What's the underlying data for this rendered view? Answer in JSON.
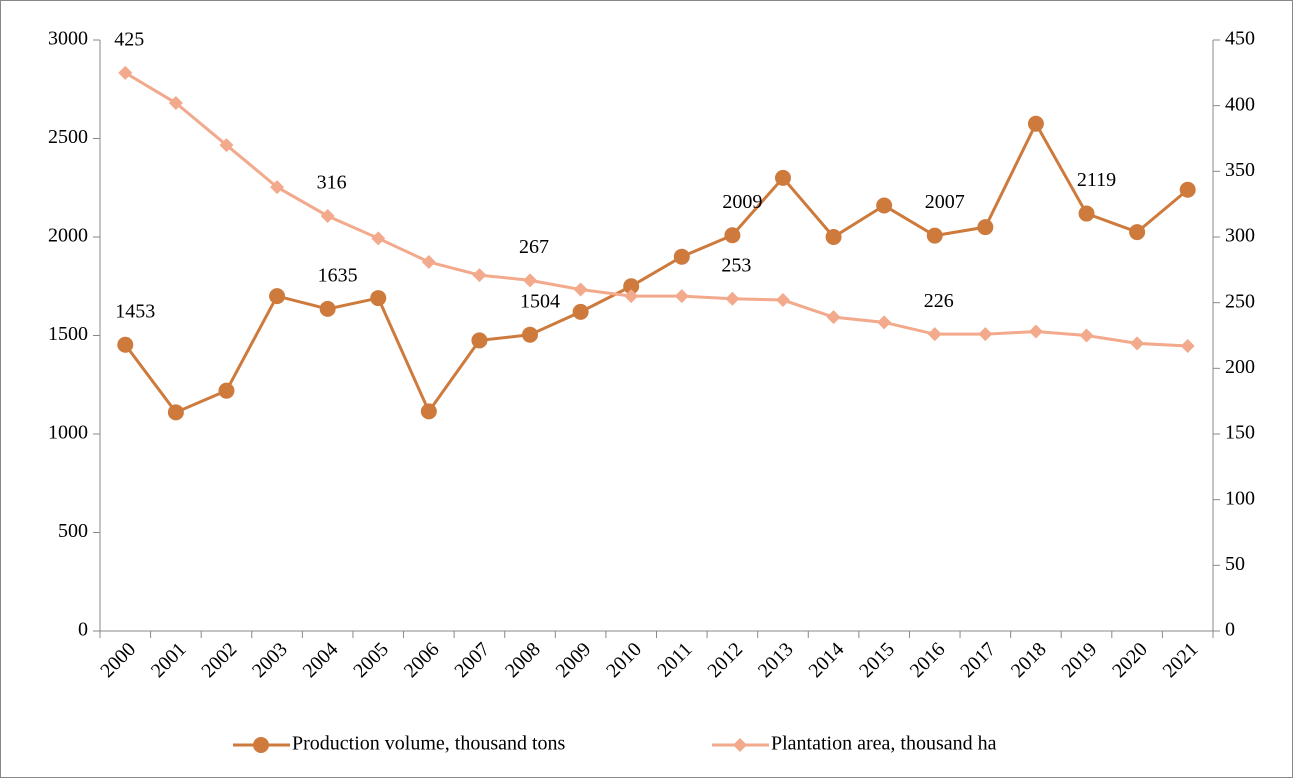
{
  "chart_data": {
    "type": "line",
    "categories": [
      "2000",
      "2001",
      "2002",
      "2003",
      "2004",
      "2005",
      "2006",
      "2007",
      "2008",
      "2009",
      "2010",
      "2011",
      "2012",
      "2013",
      "2014",
      "2015",
      "2016",
      "2017",
      "2018",
      "2019",
      "2020",
      "2021"
    ],
    "series": [
      {
        "name": "Production volume, thousand tons",
        "color": "#cd7a3c",
        "marker": "circle",
        "axis": "y",
        "values": [
          1453,
          1110,
          1220,
          1700,
          1635,
          1690,
          1115,
          1475,
          1504,
          1620,
          1750,
          1900,
          2009,
          2300,
          2000,
          2160,
          2007,
          2050,
          2575,
          2119,
          2025,
          2240
        ],
        "value_labels": [
          "1453",
          null,
          null,
          null,
          "1635",
          null,
          null,
          null,
          "1504",
          null,
          null,
          null,
          "2009",
          null,
          null,
          null,
          "2007",
          null,
          null,
          "2119",
          null,
          null
        ]
      },
      {
        "name": "Plantation area, thousand ha",
        "color": "#f2a98c",
        "marker": "diamond",
        "axis": "y2",
        "values": [
          425,
          402,
          370,
          338,
          316,
          299,
          281,
          271,
          267,
          260,
          255,
          255,
          253,
          252,
          239,
          235,
          226,
          226,
          228,
          225,
          219,
          217
        ],
        "value_labels": [
          "425",
          null,
          null,
          null,
          "316",
          null,
          null,
          null,
          "267",
          null,
          null,
          null,
          "253",
          null,
          null,
          null,
          "226",
          null,
          null,
          null,
          null,
          null
        ]
      }
    ],
    "ylim": [
      0,
      3000
    ],
    "yticks": [
      0,
      500,
      1000,
      1500,
      2000,
      2500,
      3000
    ],
    "y2lim": [
      0,
      450
    ],
    "y2ticks": [
      0,
      50,
      100,
      150,
      200,
      250,
      300,
      350,
      400,
      450
    ],
    "grid": false,
    "legend": "bottom"
  }
}
